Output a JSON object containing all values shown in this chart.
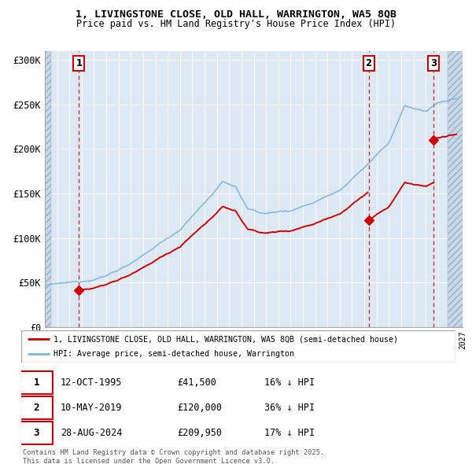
{
  "title_line1": "1, LIVINGSTONE CLOSE, OLD HALL, WARRINGTON, WA5 8QB",
  "title_line2": "Price paid vs. HM Land Registry's House Price Index (HPI)",
  "legend_red": "1, LIVINGSTONE CLOSE, OLD HALL, WARRINGTON, WA5 8QB (semi-detached house)",
  "legend_blue": "HPI: Average price, semi-detached house, Warrington",
  "sale1_label": "1",
  "sale1_date": "12-OCT-1995",
  "sale1_price": "£41,500",
  "sale1_hpi": "16% ↓ HPI",
  "sale1_year": 1995.78,
  "sale1_value": 41500,
  "sale2_label": "2",
  "sale2_date": "10-MAY-2019",
  "sale2_price": "£120,000",
  "sale2_hpi": "36% ↓ HPI",
  "sale2_year": 2019.36,
  "sale2_value": 120000,
  "sale3_label": "3",
  "sale3_date": "28-AUG-2024",
  "sale3_price": "£209,950",
  "sale3_hpi": "17% ↓ HPI",
  "sale3_year": 2024.66,
  "sale3_value": 209950,
  "ylim": [
    0,
    310000
  ],
  "xlim_start": 1993.0,
  "xlim_end": 2027.0,
  "bg_color": "#dce9f5",
  "red_line_color": "#cc0000",
  "blue_line_color": "#7ab4d8",
  "dashed_line_color": "#cc0000",
  "footer": "Contains HM Land Registry data © Crown copyright and database right 2025.\nThis data is licensed under the Open Government Licence v3.0.",
  "yticks": [
    0,
    50000,
    100000,
    150000,
    200000,
    250000,
    300000
  ],
  "ytick_labels": [
    "£0",
    "£50K",
    "£100K",
    "£150K",
    "£200K",
    "£250K",
    "£300K"
  ],
  "hatch_left_end": 1993.5,
  "hatch_right_start": 2025.8
}
